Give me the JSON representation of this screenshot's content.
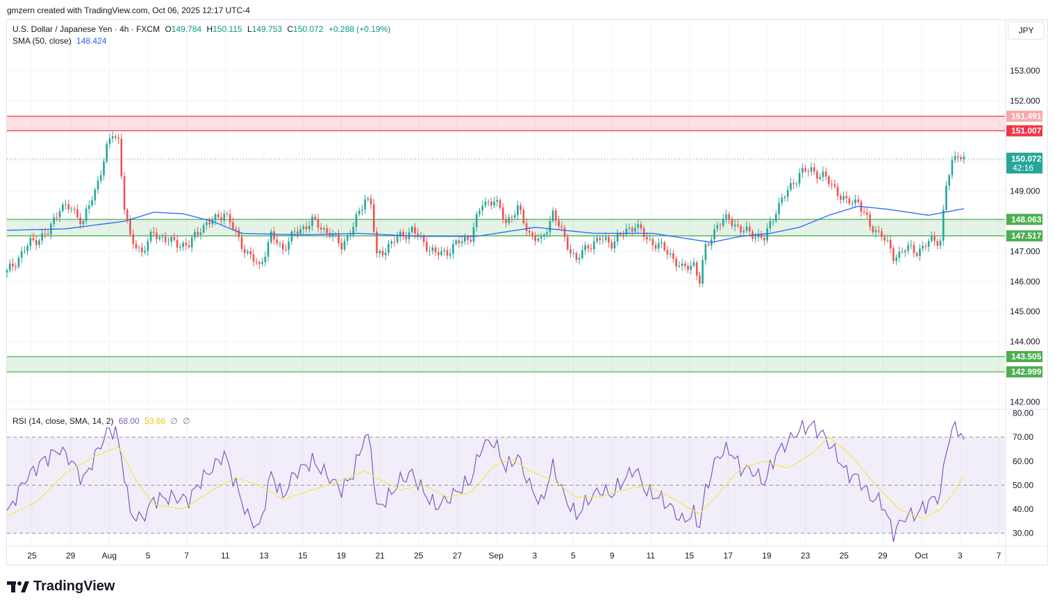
{
  "header": {
    "attribution": "gmzern created with TradingView.com, Oct 06, 2025 12:17 UTC-4"
  },
  "legend": {
    "symbol": "U.S. Dollar / Japanese Yen · 4h · FXCM",
    "o_label": "O",
    "o_value": "149.784",
    "h_label": "H",
    "h_value": "150.115",
    "l_label": "L",
    "l_value": "149.753",
    "c_label": "C",
    "c_value": "150.072",
    "change": "+0.288 (+0.19%)",
    "sma_label": "SMA (50, close)",
    "sma_value": "148.424",
    "rsi_label": "RSI (14, close, SMA, 14, 2)",
    "rsi_value": "68.00",
    "rsi_ma_value": "53.66",
    "rsi_extra1": "∅",
    "rsi_extra2": "∅"
  },
  "currency": "JPY",
  "last_price": {
    "value": "150.072",
    "countdown": "42:16"
  },
  "brand": {
    "name": "TradingView"
  },
  "colors": {
    "up": "#26a69a",
    "down": "#ef5350",
    "sma": "#2962ff",
    "rsi": "#7e57c2",
    "rsi_ma": "#f5e54a",
    "resistance": "#f23645",
    "support": "#4caf50",
    "grid": "#f0f3fa",
    "text": "#131722"
  },
  "chart_data": [
    {
      "type": "candlestick",
      "title": "U.S. Dollar / Japanese Yen · 4h · FXCM",
      "y_ticks": [
        142.0,
        143.0,
        144.0,
        145.0,
        146.0,
        147.0,
        148.0,
        149.0,
        150.0,
        151.0,
        152.0,
        153.0
      ],
      "y_tick_labels": [
        "142.000",
        "",
        "144.000",
        "145.000",
        "146.000",
        "147.000",
        "",
        "149.000",
        "",
        "",
        "152.000",
        "153.000"
      ],
      "ylim": [
        141.8,
        154.2
      ],
      "x_tick_labels": [
        "25",
        "29",
        "Aug",
        "5",
        "7",
        "11",
        "13",
        "15",
        "19",
        "21",
        "25",
        "27",
        "Sep",
        "3",
        "5",
        "9",
        "11",
        "15",
        "17",
        "19",
        "23",
        "25",
        "29",
        "Oct",
        "3",
        "7"
      ],
      "zones": [
        {
          "kind": "resistance",
          "low": 151.007,
          "high": 151.491,
          "low_label": "151.007",
          "high_label": "151.491"
        },
        {
          "kind": "support",
          "low": 147.517,
          "high": 148.063,
          "low_label": "147.517",
          "high_label": "148.063"
        },
        {
          "kind": "support",
          "low": 142.999,
          "high": 143.505,
          "low_label": "142.999",
          "high_label": "143.505"
        }
      ],
      "last_close": 150.072,
      "close_path": [
        [
          0,
          146.3
        ],
        [
          8,
          147.3
        ],
        [
          14,
          147.6
        ],
        [
          18,
          148.5
        ],
        [
          22,
          148.4
        ],
        [
          26,
          148.0
        ],
        [
          30,
          149.0
        ],
        [
          34,
          150.4
        ],
        [
          36,
          150.9
        ],
        [
          38,
          150.7
        ],
        [
          40,
          148.5
        ],
        [
          42,
          147.4
        ],
        [
          46,
          147.0
        ],
        [
          50,
          147.6
        ],
        [
          56,
          147.3
        ],
        [
          62,
          147.2
        ],
        [
          66,
          147.8
        ],
        [
          70,
          148.0
        ],
        [
          74,
          148.3
        ],
        [
          78,
          147.6
        ],
        [
          82,
          146.9
        ],
        [
          86,
          146.5
        ],
        [
          90,
          147.5
        ],
        [
          94,
          147.1
        ],
        [
          98,
          147.6
        ],
        [
          104,
          148.0
        ],
        [
          110,
          147.6
        ],
        [
          114,
          147.2
        ],
        [
          118,
          147.8
        ],
        [
          122,
          148.8
        ],
        [
          124,
          148.6
        ],
        [
          126,
          146.8
        ],
        [
          130,
          147.2
        ],
        [
          134,
          147.5
        ],
        [
          138,
          147.7
        ],
        [
          142,
          147.3
        ],
        [
          146,
          146.9
        ],
        [
          150,
          147.0
        ],
        [
          154,
          147.3
        ],
        [
          158,
          147.5
        ],
        [
          162,
          148.6
        ],
        [
          166,
          148.7
        ],
        [
          170,
          148.0
        ],
        [
          174,
          148.4
        ],
        [
          178,
          147.6
        ],
        [
          182,
          147.3
        ],
        [
          186,
          148.3
        ],
        [
          190,
          147.4
        ],
        [
          194,
          146.7
        ],
        [
          198,
          147.2
        ],
        [
          202,
          147.4
        ],
        [
          206,
          147.3
        ],
        [
          210,
          147.6
        ],
        [
          214,
          147.9
        ],
        [
          218,
          147.4
        ],
        [
          222,
          147.2
        ],
        [
          226,
          146.9
        ],
        [
          230,
          146.4
        ],
        [
          234,
          146.6
        ],
        [
          236,
          146.0
        ],
        [
          238,
          147.1
        ],
        [
          242,
          147.9
        ],
        [
          246,
          148.1
        ],
        [
          250,
          147.7
        ],
        [
          254,
          147.6
        ],
        [
          258,
          147.4
        ],
        [
          262,
          148.4
        ],
        [
          266,
          149.0
        ],
        [
          270,
          149.6
        ],
        [
          274,
          149.7
        ],
        [
          278,
          149.5
        ],
        [
          282,
          149.1
        ],
        [
          286,
          148.6
        ],
        [
          290,
          148.7
        ],
        [
          294,
          147.8
        ],
        [
          298,
          147.6
        ],
        [
          302,
          146.8
        ],
        [
          306,
          147.1
        ],
        [
          310,
          147.0
        ],
        [
          314,
          147.3
        ],
        [
          318,
          147.4
        ],
        [
          320,
          149.2
        ],
        [
          322,
          149.9
        ],
        [
          324,
          150.3
        ],
        [
          326,
          150.07
        ]
      ],
      "sma_path": [
        [
          0,
          147.7
        ],
        [
          20,
          147.75
        ],
        [
          40,
          148.0
        ],
        [
          50,
          148.3
        ],
        [
          60,
          148.25
        ],
        [
          70,
          148.0
        ],
        [
          80,
          147.6
        ],
        [
          100,
          147.55
        ],
        [
          120,
          147.6
        ],
        [
          140,
          147.5
        ],
        [
          160,
          147.5
        ],
        [
          180,
          147.8
        ],
        [
          200,
          147.6
        ],
        [
          220,
          147.6
        ],
        [
          240,
          147.3
        ],
        [
          250,
          147.5
        ],
        [
          260,
          147.6
        ],
        [
          270,
          147.8
        ],
        [
          280,
          148.2
        ],
        [
          290,
          148.5
        ],
        [
          300,
          148.4
        ],
        [
          314,
          148.2
        ],
        [
          326,
          148.42
        ]
      ]
    },
    {
      "type": "line",
      "title": "RSI (14, close, SMA, 14, 2)",
      "ylim": [
        25,
        81
      ],
      "y_ticks": [
        30,
        40,
        50,
        60,
        70,
        80
      ],
      "y_tick_labels": [
        "30.00",
        "40.00",
        "50.00",
        "60.00",
        "70.00",
        "80.00"
      ],
      "band": [
        30,
        70
      ],
      "series": [
        {
          "name": "RSI",
          "points": [
            [
              0,
              38
            ],
            [
              6,
              52
            ],
            [
              12,
              60
            ],
            [
              18,
              65
            ],
            [
              22,
              60
            ],
            [
              26,
              52
            ],
            [
              30,
              62
            ],
            [
              34,
              72
            ],
            [
              37,
              73
            ],
            [
              40,
              55
            ],
            [
              42,
              38
            ],
            [
              46,
              36
            ],
            [
              50,
              44
            ],
            [
              56,
              45
            ],
            [
              62,
              44
            ],
            [
              66,
              52
            ],
            [
              70,
              57
            ],
            [
              74,
              63
            ],
            [
              78,
              50
            ],
            [
              82,
              37
            ],
            [
              86,
              32
            ],
            [
              90,
              55
            ],
            [
              94,
              45
            ],
            [
              98,
              55
            ],
            [
              104,
              60
            ],
            [
              110,
              53
            ],
            [
              114,
              48
            ],
            [
              118,
              55
            ],
            [
              122,
              71
            ],
            [
              124,
              66
            ],
            [
              126,
              40
            ],
            [
              130,
              45
            ],
            [
              134,
              52
            ],
            [
              138,
              55
            ],
            [
              142,
              47
            ],
            [
              146,
              41
            ],
            [
              150,
              44
            ],
            [
              154,
              48
            ],
            [
              158,
              52
            ],
            [
              162,
              67
            ],
            [
              166,
              68
            ],
            [
              170,
              57
            ],
            [
              174,
              62
            ],
            [
              178,
              50
            ],
            [
              182,
              42
            ],
            [
              186,
              58
            ],
            [
              190,
              45
            ],
            [
              194,
              37
            ],
            [
              198,
              44
            ],
            [
              202,
              48
            ],
            [
              206,
              46
            ],
            [
              210,
              52
            ],
            [
              214,
              57
            ],
            [
              218,
              47
            ],
            [
              222,
              45
            ],
            [
              226,
              41
            ],
            [
              230,
              35
            ],
            [
              234,
              38
            ],
            [
              236,
              33
            ],
            [
              238,
              48
            ],
            [
              242,
              62
            ],
            [
              246,
              65
            ],
            [
              250,
              57
            ],
            [
              254,
              56
            ],
            [
              258,
              51
            ],
            [
              262,
              63
            ],
            [
              266,
              68
            ],
            [
              270,
              73
            ],
            [
              274,
              75
            ],
            [
              278,
              71
            ],
            [
              282,
              64
            ],
            [
              286,
              55
            ],
            [
              290,
              53
            ],
            [
              294,
              45
            ],
            [
              298,
              43
            ],
            [
              302,
              30
            ],
            [
              306,
              37
            ],
            [
              310,
              38
            ],
            [
              314,
              43
            ],
            [
              318,
              46
            ],
            [
              320,
              65
            ],
            [
              322,
              73
            ],
            [
              324,
              74
            ],
            [
              326,
              68
            ]
          ]
        },
        {
          "name": "RSI MA",
          "points": [
            [
              0,
              37
            ],
            [
              10,
              43
            ],
            [
              20,
              55
            ],
            [
              30,
              62
            ],
            [
              38,
              66
            ],
            [
              44,
              52
            ],
            [
              50,
              42
            ],
            [
              60,
              40
            ],
            [
              70,
              48
            ],
            [
              78,
              53
            ],
            [
              86,
              50
            ],
            [
              94,
              44
            ],
            [
              104,
              48
            ],
            [
              114,
              52
            ],
            [
              122,
              56
            ],
            [
              126,
              53
            ],
            [
              134,
              48
            ],
            [
              142,
              50
            ],
            [
              150,
              45
            ],
            [
              158,
              47
            ],
            [
              166,
              58
            ],
            [
              172,
              61
            ],
            [
              178,
              56
            ],
            [
              186,
              52
            ],
            [
              194,
              45
            ],
            [
              202,
              45
            ],
            [
              210,
              48
            ],
            [
              218,
              50
            ],
            [
              226,
              45
            ],
            [
              236,
              38
            ],
            [
              242,
              46
            ],
            [
              250,
              57
            ],
            [
              258,
              60
            ],
            [
              266,
              57
            ],
            [
              274,
              63
            ],
            [
              280,
              70
            ],
            [
              288,
              62
            ],
            [
              296,
              50
            ],
            [
              304,
              40
            ],
            [
              312,
              36
            ],
            [
              318,
              40
            ],
            [
              322,
              46
            ],
            [
              326,
              53.66
            ]
          ]
        }
      ]
    }
  ]
}
